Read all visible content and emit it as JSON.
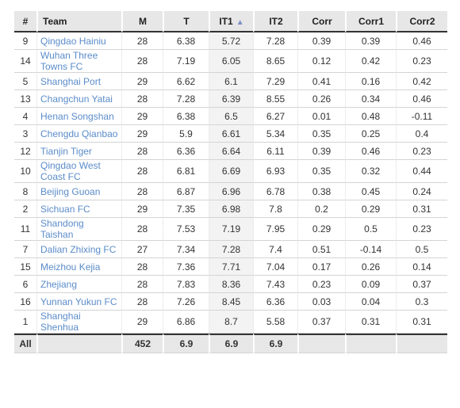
{
  "table": {
    "columns": [
      "#",
      "Team",
      "M",
      "T",
      "IT1",
      "IT2",
      "Corr",
      "Corr1",
      "Corr2"
    ],
    "sorted_column": "IT1",
    "sort_indicator": "▲",
    "rows": [
      [
        "9",
        "Qingdao Hainiu",
        "28",
        "6.38",
        "5.72",
        "7.28",
        "0.39",
        "0.39",
        "0.46"
      ],
      [
        "14",
        "Wuhan Three Towns FC",
        "28",
        "7.19",
        "6.05",
        "8.65",
        "0.12",
        "0.42",
        "0.23"
      ],
      [
        "5",
        "Shanghai Port",
        "29",
        "6.62",
        "6.1",
        "7.29",
        "0.41",
        "0.16",
        "0.42"
      ],
      [
        "13",
        "Changchun Yatai",
        "28",
        "7.28",
        "6.39",
        "8.55",
        "0.26",
        "0.34",
        "0.46"
      ],
      [
        "4",
        "Henan Songshan",
        "29",
        "6.38",
        "6.5",
        "6.27",
        "0.01",
        "0.48",
        "-0.11"
      ],
      [
        "3",
        "Chengdu Qianbao",
        "29",
        "5.9",
        "6.61",
        "5.34",
        "0.35",
        "0.25",
        "0.4"
      ],
      [
        "12",
        "Tianjin Tiger",
        "28",
        "6.36",
        "6.64",
        "6.11",
        "0.39",
        "0.46",
        "0.23"
      ],
      [
        "10",
        "Qingdao West Coast FC",
        "28",
        "6.81",
        "6.69",
        "6.93",
        "0.35",
        "0.32",
        "0.44"
      ],
      [
        "8",
        "Beijing Guoan",
        "28",
        "6.87",
        "6.96",
        "6.78",
        "0.38",
        "0.45",
        "0.24"
      ],
      [
        "2",
        "Sichuan FC",
        "29",
        "7.35",
        "6.98",
        "7.8",
        "0.2",
        "0.29",
        "0.31"
      ],
      [
        "11",
        "Shandong Taishan",
        "28",
        "7.53",
        "7.19",
        "7.95",
        "0.29",
        "0.5",
        "0.23"
      ],
      [
        "7",
        "Dalian Zhixing FC",
        "27",
        "7.34",
        "7.28",
        "7.4",
        "0.51",
        "-0.14",
        "0.5"
      ],
      [
        "15",
        "Meizhou Kejia",
        "28",
        "7.36",
        "7.71",
        "7.04",
        "0.17",
        "0.26",
        "0.14"
      ],
      [
        "6",
        "Zhejiang",
        "28",
        "7.83",
        "8.36",
        "7.43",
        "0.23",
        "0.09",
        "0.37"
      ],
      [
        "16",
        "Yunnan Yukun FC",
        "28",
        "7.26",
        "8.45",
        "6.36",
        "0.03",
        "0.04",
        "0.3"
      ],
      [
        "1",
        "Shanghai Shenhua",
        "29",
        "6.86",
        "8.7",
        "5.58",
        "0.37",
        "0.31",
        "0.31"
      ]
    ],
    "footer": [
      "All",
      "",
      "452",
      "6.9",
      "6.9",
      "6.9",
      "",
      "",
      ""
    ]
  }
}
